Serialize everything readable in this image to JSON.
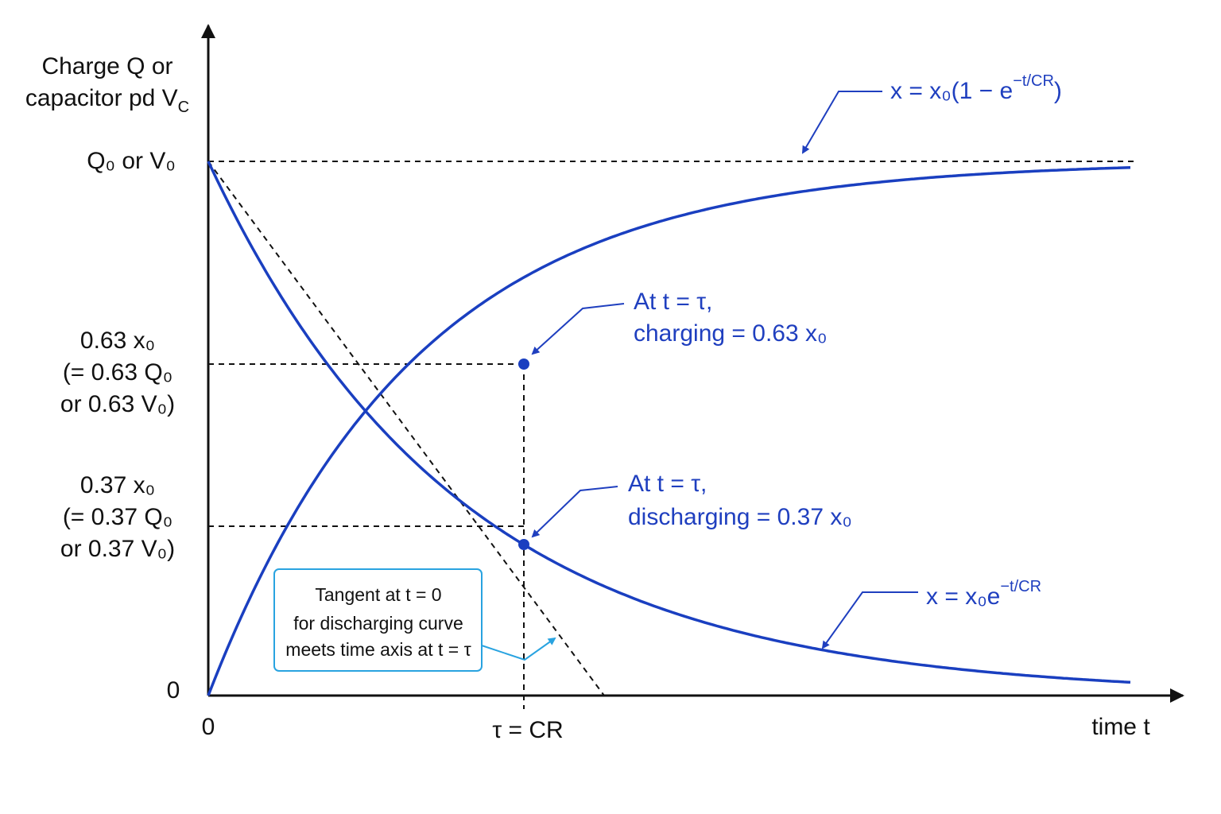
{
  "y_axis_label": {
    "line1": "Charge Q or",
    "line2": "capacitor pd V",
    "line2_sub": "C"
  },
  "y_labels": {
    "top": "Q₀ or V₀",
    "level_63": [
      "0.63 x₀",
      "(= 0.63 Q₀",
      "or 0.63 V₀)"
    ],
    "level_37": [
      "0.37 x₀",
      "(= 0.37 Q₀",
      "or 0.37 V₀)"
    ],
    "zero": "0"
  },
  "x_labels": {
    "origin": "0",
    "tau": "τ = CR",
    "axis": "time t"
  },
  "charging_formula": {
    "main": "x = x₀(1 − e",
    "sup": "−t/CR",
    "end": ")"
  },
  "discharging_formula": {
    "main": "x = x₀e",
    "sup": "−t/CR"
  },
  "charging_note": [
    "At t = τ,",
    "charging = 0.63 x₀"
  ],
  "discharging_note": [
    "At t = τ,",
    "discharging = 0.37 x₀"
  ],
  "tangent_note": [
    "Tangent at t = 0",
    "for discharging curve",
    "meets time axis at t = τ"
  ]
}
